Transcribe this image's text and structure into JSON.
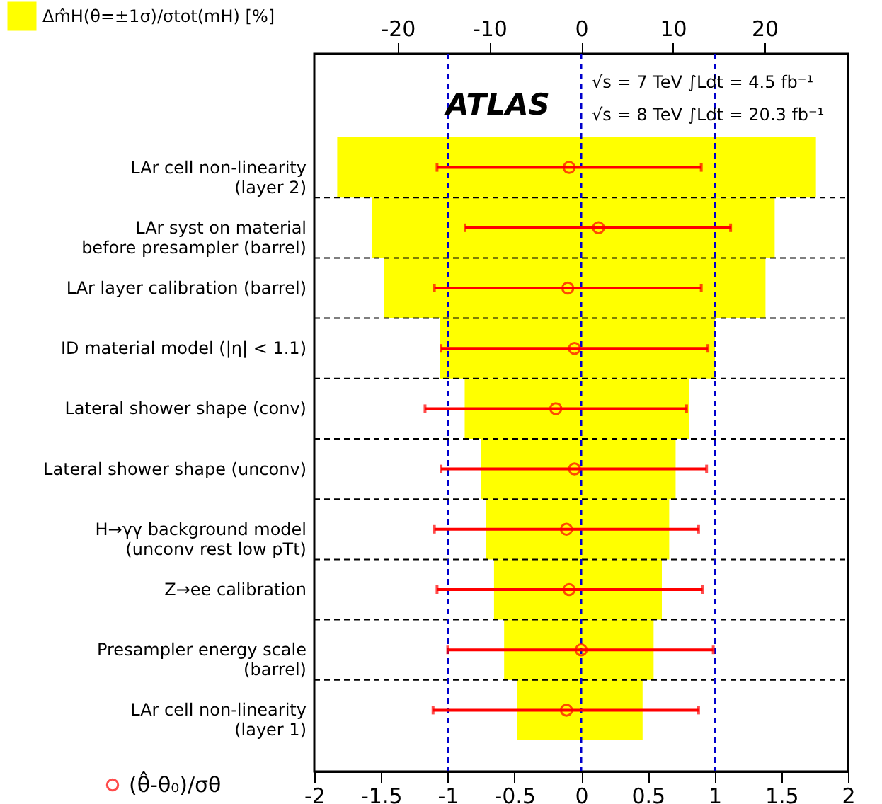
{
  "chart_data": {
    "type": "bar",
    "orientation": "horizontal",
    "categories": [
      "LAr cell non-linearity\n(layer 2)",
      "LAr syst on material\nbefore presampler (barrel)",
      "LAr layer calibration (barrel)",
      "ID material model (|η| < 1.1)",
      "Lateral shower shape (conv)",
      "Lateral shower shape (unconv)",
      "H→γγ background model\n(unconv rest low pTt)",
      "Z→ee calibration",
      "Presampler energy scale\n(barrel)",
      "LAr cell non-linearity\n(layer 1)"
    ],
    "series": [
      {
        "name": "Δm̂H(θ=±1σ)/σtot(mH) [%]",
        "axis": "x2",
        "color": "#ffff00",
        "base": [
          -26.6,
          -22.8,
          -21.5,
          -15.4,
          -12.7,
          -10.9,
          -10.4,
          -9.5,
          -8.4,
          -7.0
        ],
        "values": [
          52.2,
          43.9,
          41.6,
          30.0,
          24.5,
          21.2,
          20.0,
          18.3,
          16.3,
          13.7
        ]
      },
      {
        "name": "(θ̂-θ₀)/σθ",
        "type": "scatter",
        "color": "#ff0000",
        "marker": "circle",
        "values": [
          -0.09,
          0.13,
          -0.1,
          -0.05,
          -0.19,
          -0.05,
          -0.11,
          -0.09,
          0.0,
          -0.11
        ],
        "errors": [
          [
            -1.08,
            0.9
          ],
          [
            -0.87,
            1.12
          ],
          [
            -1.1,
            0.9
          ],
          [
            -1.05,
            0.95
          ],
          [
            -1.17,
            0.79
          ],
          [
            -1.05,
            0.94
          ],
          [
            -1.1,
            0.88
          ],
          [
            -1.08,
            0.91
          ],
          [
            -1.0,
            0.99
          ],
          [
            -1.11,
            0.88
          ]
        ]
      }
    ],
    "xlim": [
      -2,
      2
    ],
    "xticks": [
      -2,
      -1.5,
      -1,
      -0.5,
      0,
      0.5,
      1,
      1.5,
      2
    ],
    "x2lim": [
      -29.1,
      29.1
    ],
    "x2ticks": [
      -20,
      -10,
      0,
      10,
      20
    ],
    "ref_lines": [
      {
        "axis": "x",
        "value": -1,
        "color": "#0000cc",
        "line_style": "dashed"
      },
      {
        "axis": "x",
        "value": 0,
        "color": "#0000cc",
        "line_style": "dashed"
      },
      {
        "axis": "x",
        "value": 1,
        "color": "#0000cc",
        "line_style": "dashed"
      }
    ],
    "grid": "y",
    "legend": "left",
    "annotations": [
      "ATLAS",
      "√s = 7 TeV ∫Ldt = 4.5 fb⁻¹",
      "√s = 8 TeV ∫Ldt = 20.3 fb⁻¹"
    ]
  }
}
